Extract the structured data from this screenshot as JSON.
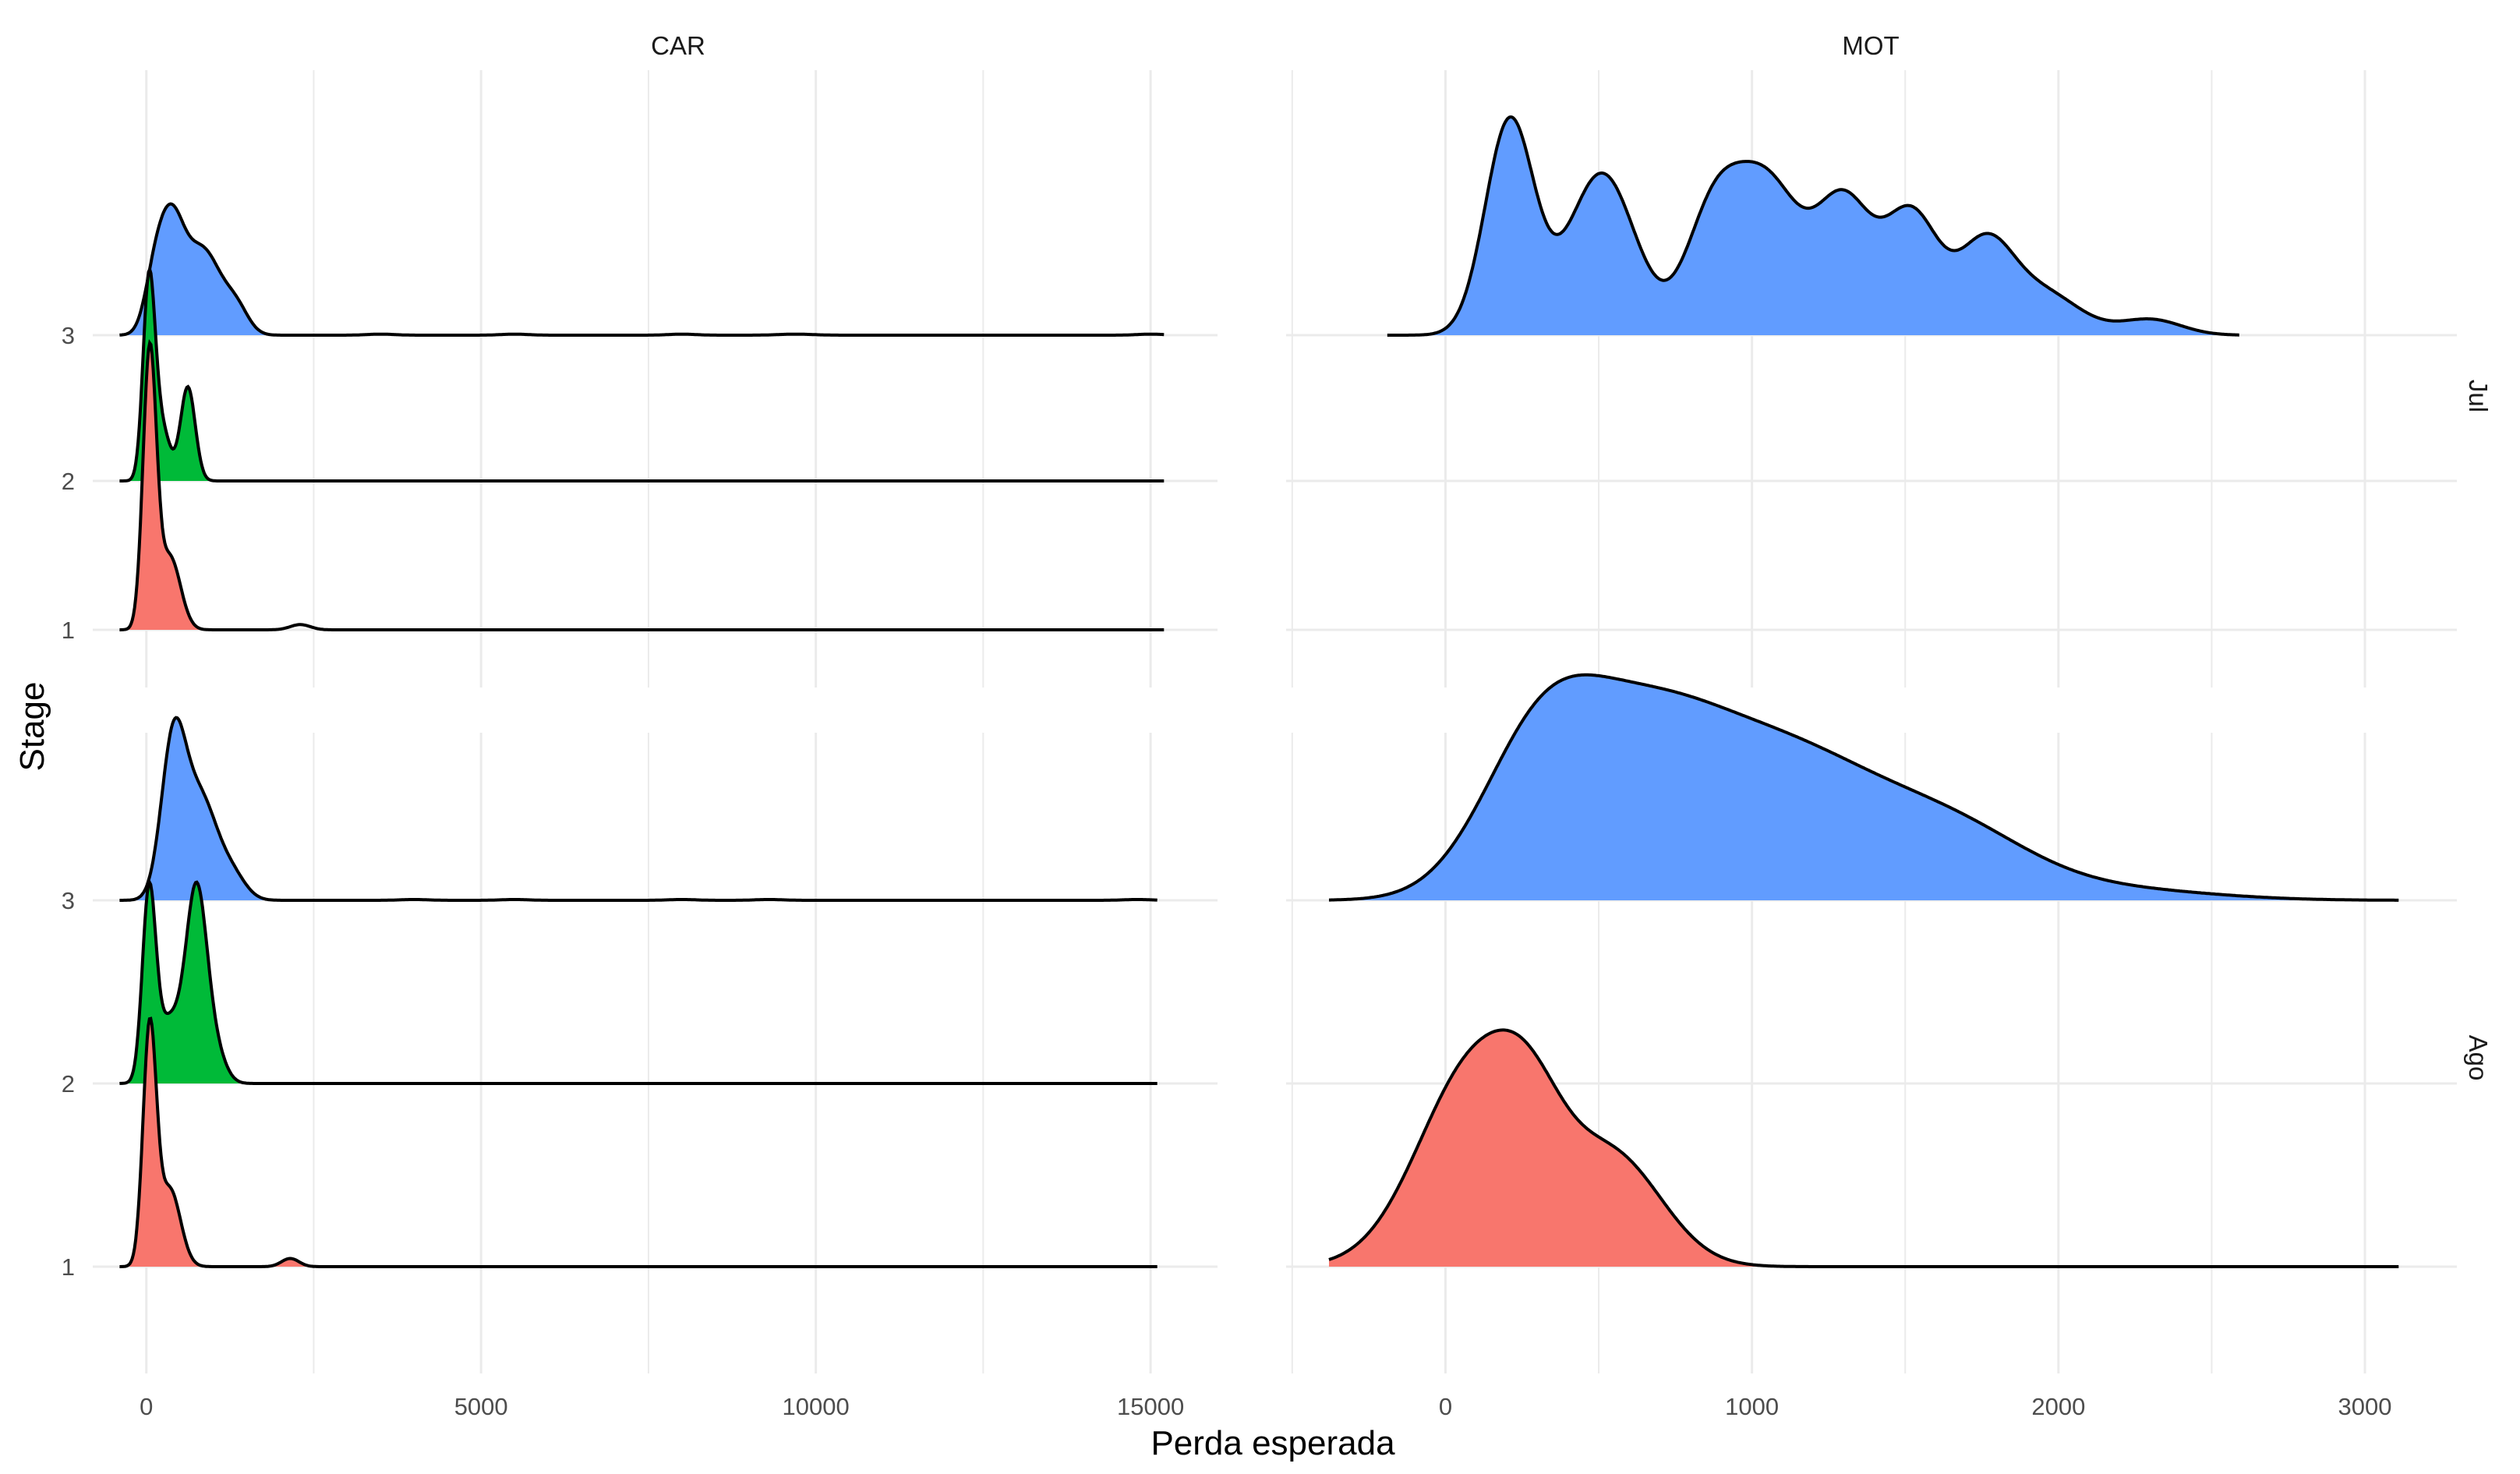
{
  "chart_data": {
    "type": "ridgeline",
    "xlabel": "Perda esperada",
    "ylabel": "Stage",
    "columns": [
      "CAR",
      "MOT"
    ],
    "rows": [
      "Jul",
      "Ago"
    ],
    "stage_ticks": [
      "1",
      "2",
      "3"
    ],
    "stage_colors": {
      "1": "#F8766D",
      "2": "#00BA38",
      "3": "#619CFF"
    },
    "x_axes": {
      "CAR": {
        "range": [
          -800,
          16000
        ],
        "ticks": [
          0,
          5000,
          10000,
          15000
        ],
        "tick_labels": [
          "0",
          "5000",
          "10000",
          "15000"
        ]
      },
      "MOT": {
        "range": [
          -520,
          3300
        ],
        "ticks": [
          0,
          1000,
          2000,
          3000
        ],
        "tick_labels": [
          "0",
          "1000",
          "2000",
          "3000"
        ]
      }
    },
    "panels": [
      {
        "column": "CAR",
        "row": "Jul",
        "ridges": [
          {
            "stage": "1",
            "x_range": [
              -400,
              15200
            ],
            "fill_until": 1600,
            "peaks": [
              [
                50,
                1.05,
                100
              ],
              [
                350,
                0.28,
                160
              ],
              [
                2300,
                0.02,
                150
              ]
            ]
          },
          {
            "stage": "2",
            "x_range": [
              -400,
              15200
            ],
            "fill_until": 1100,
            "peaks": [
              [
                40,
                0.75,
                90
              ],
              [
                230,
                0.2,
                120
              ],
              [
                620,
                0.36,
                110
              ]
            ]
          },
          {
            "stage": "3",
            "x_range": [
              -400,
              15200
            ],
            "fill_until": 1800,
            "peaks": [
              [
                100,
                0.12,
                140
              ],
              [
                350,
                0.42,
                200
              ],
              [
                850,
                0.32,
                270
              ],
              [
                1350,
                0.09,
                180
              ],
              [
                3500,
                0.004,
                200
              ],
              [
                5500,
                0.004,
                200
              ],
              [
                8000,
                0.004,
                200
              ],
              [
                9700,
                0.004,
                250
              ],
              [
                15000,
                0.004,
                200
              ]
            ]
          }
        ]
      },
      {
        "column": "CAR",
        "row": "Ago",
        "ridges": [
          {
            "stage": "1",
            "x_range": [
              -400,
              15100
            ],
            "fill_until": 2500,
            "peaks": [
              [
                50,
                1.15,
                100
              ],
              [
                350,
                0.38,
                160
              ],
              [
                2150,
                0.04,
                130
              ]
            ]
          },
          {
            "stage": "2",
            "x_range": [
              -400,
              15100
            ],
            "fill_until": 1450,
            "peaks": [
              [
                40,
                0.9,
                100
              ],
              [
                330,
                0.3,
                180
              ],
              [
                750,
                0.95,
                160
              ],
              [
                1050,
                0.12,
                150
              ]
            ]
          },
          {
            "stage": "3",
            "x_range": [
              -400,
              15100
            ],
            "fill_until": 1900,
            "peaks": [
              [
                400,
                0.72,
                180
              ],
              [
                800,
                0.5,
                260
              ],
              [
                1300,
                0.1,
                200
              ],
              [
                4000,
                0.004,
                200
              ],
              [
                5500,
                0.004,
                200
              ],
              [
                8000,
                0.004,
                200
              ],
              [
                9300,
                0.004,
                200
              ],
              [
                14800,
                0.004,
                200
              ]
            ]
          }
        ]
      },
      {
        "column": "MOT",
        "row": "Jul",
        "ridges": [
          {
            "stage": "3",
            "x_range": [
              -190,
              2590
            ],
            "fill_until": 2590,
            "peaks": [
              [
                210,
                0.82,
                80
              ],
              [
                510,
                0.62,
                110
              ],
              [
                870,
                0.42,
                90
              ],
              [
                1050,
                0.57,
                110
              ],
              [
                1300,
                0.49,
                90
              ],
              [
                1520,
                0.46,
                90
              ],
              [
                1760,
                0.33,
                90
              ],
              [
                1950,
                0.16,
                120
              ],
              [
                2300,
                0.06,
                100
              ]
            ]
          }
        ]
      },
      {
        "column": "MOT",
        "row": "Ago",
        "ridges": [
          {
            "stage": "1",
            "x_range": [
              -380,
              3110
            ],
            "fill_until": 3110,
            "peaks": [
              [
                100,
                1.0,
                185
              ],
              [
                280,
                0.32,
                110
              ],
              [
                550,
                0.52,
                160
              ]
            ]
          },
          {
            "stage": "3",
            "x_range": [
              -380,
              3110
            ],
            "fill_until": 3110,
            "peaks": [
              [
                300,
                0.62,
                190
              ],
              [
                650,
                0.82,
                270
              ],
              [
                1150,
                0.6,
                280
              ],
              [
                1650,
                0.32,
                260
              ],
              [
                2200,
                0.05,
                300
              ]
            ]
          }
        ]
      }
    ]
  }
}
